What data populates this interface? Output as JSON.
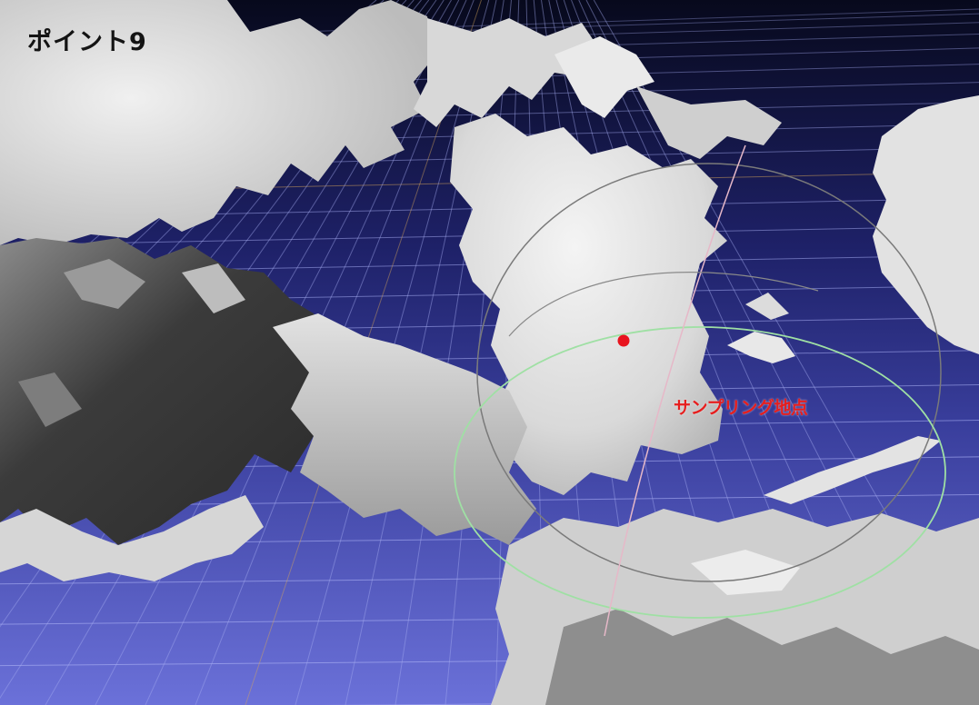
{
  "view": {
    "title": "ポイント9",
    "sampling_label": "サンプリング地点"
  },
  "colors": {
    "sky_top": "#080a1e",
    "sky_mid": "#25287a",
    "ground_far": "#4246a8",
    "ground_near": "#6a70d8",
    "grid_blue": "#a4aaf0",
    "grid_orange": "#d7a65a",
    "surface_light": "#e6e6e6",
    "surface_dark": "#3a3a3a",
    "sample_dot": "#e8141e",
    "sample_text": "#e61e1e",
    "ring_gray": "#7a7a7a",
    "ring_green": "#9fe0a4",
    "ring_pink": "#e6b8c8"
  },
  "icons": {
    "sample_marker": "red-dot-icon"
  }
}
